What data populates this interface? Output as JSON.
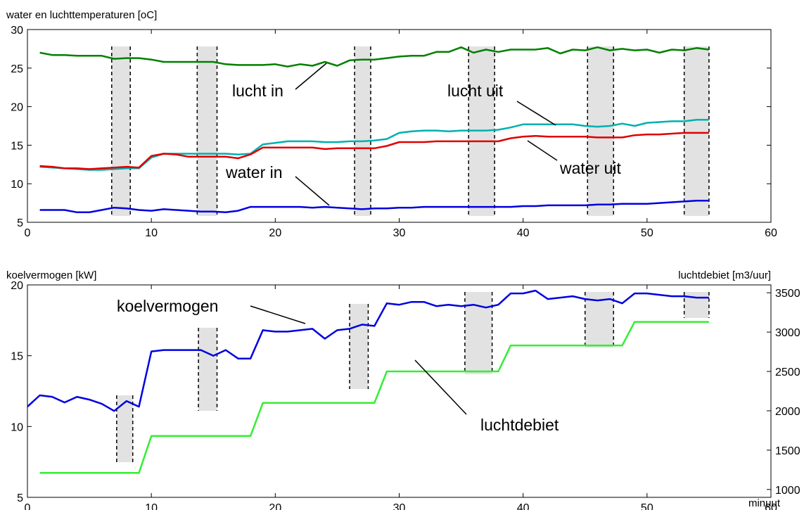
{
  "chart_data": [
    {
      "type": "line",
      "ylabel": "water en luchttemperaturen [oC]",
      "xlabel": "",
      "xlim": [
        0,
        60
      ],
      "ylim": [
        5,
        30
      ],
      "xticks": [
        0,
        10,
        20,
        30,
        40,
        50,
        60
      ],
      "yticks": [
        5,
        10,
        15,
        20,
        25,
        30
      ],
      "grid": false,
      "series": [
        {
          "name": "lucht in",
          "color": "#008000",
          "x": [
            1,
            2,
            3,
            4,
            5,
            6,
            7,
            8,
            9,
            10,
            11,
            12,
            13,
            14,
            15,
            16,
            17,
            18,
            19,
            20,
            21,
            22,
            23,
            24,
            25,
            26,
            27,
            28,
            29,
            30,
            31,
            32,
            33,
            34,
            35,
            36,
            37,
            38,
            39,
            40,
            41,
            42,
            43,
            44,
            45,
            46,
            47,
            48,
            49,
            50,
            51,
            52,
            53,
            54,
            55
          ],
          "y": [
            27.0,
            26.7,
            26.7,
            26.6,
            26.6,
            26.6,
            26.2,
            26.3,
            26.3,
            26.1,
            25.8,
            25.8,
            25.8,
            25.8,
            25.8,
            25.5,
            25.4,
            25.4,
            25.4,
            25.5,
            25.2,
            25.5,
            25.3,
            25.8,
            25.3,
            26.0,
            26.1,
            26.1,
            26.3,
            26.5,
            26.6,
            26.6,
            27.1,
            27.1,
            27.7,
            27.0,
            27.4,
            27.1,
            27.4,
            27.4,
            27.4,
            27.6,
            26.9,
            27.4,
            27.3,
            27.7,
            27.3,
            27.5,
            27.3,
            27.4,
            27.0,
            27.4,
            27.3,
            27.6,
            27.4
          ]
        },
        {
          "name": "lucht uit",
          "color": "#00b0b0",
          "x": [
            1,
            2,
            3,
            4,
            5,
            6,
            7,
            8,
            9,
            10,
            11,
            12,
            13,
            14,
            15,
            16,
            17,
            18,
            19,
            20,
            21,
            22,
            23,
            24,
            25,
            26,
            27,
            28,
            29,
            30,
            31,
            32,
            33,
            34,
            35,
            36,
            37,
            38,
            39,
            40,
            41,
            42,
            43,
            44,
            45,
            46,
            47,
            48,
            49,
            50,
            51,
            52,
            53,
            54,
            55
          ],
          "y": [
            12.2,
            12.1,
            12.0,
            11.9,
            11.8,
            11.8,
            11.9,
            12.0,
            12.0,
            13.4,
            13.9,
            13.9,
            13.9,
            13.9,
            13.9,
            13.9,
            13.8,
            13.9,
            15.1,
            15.3,
            15.5,
            15.5,
            15.5,
            15.4,
            15.4,
            15.5,
            15.5,
            15.6,
            15.8,
            16.6,
            16.8,
            16.9,
            16.9,
            16.8,
            16.9,
            16.9,
            16.9,
            17.0,
            17.3,
            17.7,
            17.7,
            17.7,
            17.7,
            17.7,
            17.5,
            17.4,
            17.5,
            17.8,
            17.5,
            17.9,
            18.0,
            18.1,
            18.1,
            18.3,
            18.3
          ]
        },
        {
          "name": "water uit",
          "color": "#e00000",
          "x": [
            1,
            2,
            3,
            4,
            5,
            6,
            7,
            8,
            9,
            10,
            11,
            12,
            13,
            14,
            15,
            16,
            17,
            18,
            19,
            20,
            21,
            22,
            23,
            24,
            25,
            26,
            27,
            28,
            29,
            30,
            31,
            32,
            33,
            34,
            35,
            36,
            37,
            38,
            39,
            40,
            41,
            42,
            43,
            44,
            45,
            46,
            47,
            48,
            49,
            50,
            51,
            52,
            53,
            54,
            55
          ],
          "y": [
            12.3,
            12.2,
            12.0,
            12.0,
            11.9,
            12.0,
            12.1,
            12.2,
            12.1,
            13.6,
            13.9,
            13.8,
            13.5,
            13.5,
            13.5,
            13.5,
            13.3,
            13.8,
            14.7,
            14.7,
            14.7,
            14.7,
            14.7,
            14.5,
            14.6,
            14.6,
            14.6,
            14.6,
            14.9,
            15.4,
            15.4,
            15.4,
            15.5,
            15.5,
            15.5,
            15.5,
            15.5,
            15.5,
            15.9,
            16.1,
            16.2,
            16.1,
            16.1,
            16.1,
            16.1,
            16.0,
            16.0,
            16.0,
            16.3,
            16.4,
            16.4,
            16.5,
            16.6,
            16.6,
            16.6
          ]
        },
        {
          "name": "water in",
          "color": "#0000e0",
          "x": [
            1,
            2,
            3,
            4,
            5,
            6,
            7,
            8,
            9,
            10,
            11,
            12,
            13,
            14,
            15,
            16,
            17,
            18,
            19,
            20,
            21,
            22,
            23,
            24,
            25,
            26,
            27,
            28,
            29,
            30,
            31,
            32,
            33,
            34,
            35,
            36,
            37,
            38,
            39,
            40,
            41,
            42,
            43,
            44,
            45,
            46,
            47,
            48,
            49,
            50,
            51,
            52,
            53,
            54,
            55
          ],
          "y": [
            6.6,
            6.6,
            6.6,
            6.3,
            6.3,
            6.6,
            6.9,
            6.8,
            6.6,
            6.5,
            6.7,
            6.6,
            6.5,
            6.4,
            6.4,
            6.3,
            6.5,
            7.0,
            7.0,
            7.0,
            7.0,
            7.0,
            6.9,
            7.0,
            6.9,
            6.8,
            6.7,
            6.8,
            6.8,
            6.9,
            6.9,
            7.0,
            7.0,
            7.0,
            7.0,
            7.0,
            7.0,
            7.0,
            7.0,
            7.1,
            7.1,
            7.2,
            7.2,
            7.2,
            7.2,
            7.3,
            7.3,
            7.4,
            7.4,
            7.4,
            7.5,
            7.6,
            7.7,
            7.8,
            7.8
          ]
        }
      ],
      "shaded_intervals": [
        [
          6.8,
          8.3
        ],
        [
          13.7,
          15.3
        ],
        [
          26.4,
          27.7
        ],
        [
          35.6,
          37.7
        ],
        [
          45.2,
          47.3
        ],
        [
          53.0,
          55.0
        ]
      ],
      "annotations": [
        {
          "text": "lucht in",
          "x": 24.0,
          "y": 26.0
        },
        {
          "text": "lucht uit",
          "x": 42.0,
          "y": 17.8
        },
        {
          "text": "water uit",
          "x": 40.5,
          "y": 15.9
        },
        {
          "text": "water in",
          "x": 24.0,
          "y": 7.0
        }
      ]
    },
    {
      "type": "line",
      "ylabel": "koelvermogen [kW]",
      "y2label": "luchtdebiet [m3/uur]",
      "xlabel": "minuut",
      "xlim": [
        0,
        60
      ],
      "ylim": [
        5,
        20
      ],
      "y2lim": [
        900,
        3600
      ],
      "xticks": [
        0,
        10,
        20,
        30,
        40,
        50,
        60
      ],
      "yticks": [
        5,
        10,
        15,
        20
      ],
      "y2ticks": [
        1000,
        1500,
        2000,
        2500,
        3000,
        3500
      ],
      "grid": false,
      "series": [
        {
          "name": "koelvermogen",
          "axis": "left",
          "color": "#0000e0",
          "x": [
            0,
            1,
            2,
            3,
            4,
            5,
            6,
            7,
            8,
            9,
            10,
            11,
            12,
            13,
            14,
            15,
            16,
            17,
            18,
            19,
            20,
            21,
            22,
            23,
            24,
            25,
            26,
            27,
            28,
            29,
            30,
            31,
            32,
            33,
            34,
            35,
            36,
            37,
            38,
            39,
            40,
            41,
            42,
            43,
            44,
            45,
            46,
            47,
            48,
            49,
            50,
            51,
            52,
            53,
            54,
            55
          ],
          "y": [
            11.4,
            12.2,
            12.1,
            11.7,
            12.1,
            11.9,
            11.6,
            11.1,
            11.8,
            11.4,
            15.3,
            15.4,
            15.4,
            15.4,
            15.4,
            15.0,
            15.4,
            14.8,
            14.8,
            16.8,
            16.7,
            16.7,
            16.8,
            16.9,
            16.2,
            16.8,
            16.9,
            17.2,
            17.1,
            18.7,
            18.6,
            18.8,
            18.8,
            18.5,
            18.6,
            18.5,
            18.6,
            18.4,
            18.6,
            19.4,
            19.4,
            19.6,
            19.0,
            19.1,
            19.2,
            19.0,
            18.9,
            19.0,
            18.7,
            19.4,
            19.4,
            19.3,
            19.2,
            19.2,
            19.1,
            19.1
          ]
        },
        {
          "name": "luchtdebiet",
          "axis": "right",
          "color": "#33ee33",
          "x": [
            1,
            9,
            10,
            18,
            19,
            28,
            29,
            38,
            39,
            48,
            49,
            55
          ],
          "y": [
            1210,
            1210,
            1680,
            1680,
            2100,
            2100,
            2500,
            2500,
            2830,
            2830,
            3130,
            3130
          ]
        }
      ],
      "shaded_intervals": [
        [
          7.2,
          8.5
        ],
        [
          13.8,
          15.3
        ],
        [
          26.0,
          27.5
        ],
        [
          35.3,
          37.5
        ],
        [
          45.0,
          47.3
        ],
        [
          53.0,
          55.0
        ]
      ],
      "annotations": [
        {
          "text": "koelvermogen",
          "x": 23.0,
          "y": 17.0
        },
        {
          "text": "luchtdebiet",
          "x": 37.5,
          "y": 12.6
        }
      ]
    }
  ]
}
